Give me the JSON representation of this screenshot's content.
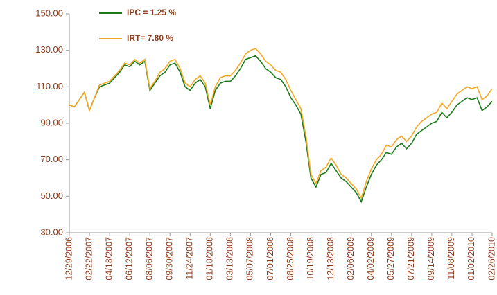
{
  "chart_data": {
    "type": "line",
    "categories": [
      "12/29/2006",
      null,
      null,
      null,
      "02/22/2007",
      null,
      null,
      null,
      "04/18/2007",
      null,
      null,
      null,
      "06/12/2007",
      null,
      null,
      null,
      "08/06/2007",
      null,
      null,
      null,
      "09/30/2007",
      null,
      null,
      null,
      "11/24/2007",
      null,
      null,
      null,
      "01/18/2008",
      null,
      null,
      null,
      "03/13/2008",
      null,
      null,
      null,
      "05/07/2008",
      null,
      null,
      null,
      "07/01/2008",
      null,
      null,
      null,
      "08/25/2008",
      null,
      null,
      null,
      "10/19/2008",
      null,
      null,
      null,
      "12/13/2008",
      null,
      null,
      null,
      "02/06/2009",
      null,
      null,
      null,
      "04/02/2009",
      null,
      null,
      null,
      "05/27/2009",
      null,
      null,
      null,
      "07/21/2009",
      null,
      null,
      null,
      "09/14/2009",
      null,
      null,
      null,
      "11/08/2009",
      null,
      null,
      null,
      "01/02/2010",
      null,
      null,
      null,
      "02/26/2010"
    ],
    "series": [
      {
        "name": "IPC = 1.25 %",
        "color": "#1a7a1a",
        "values": [
          100,
          99,
          103,
          107,
          97,
          104,
          110,
          111,
          112,
          115,
          118,
          122,
          121,
          124,
          122,
          124,
          108,
          112,
          116,
          118,
          122,
          123,
          118,
          110,
          108,
          112,
          114,
          110,
          98,
          108,
          112,
          113,
          113,
          116,
          120,
          125,
          126,
          127,
          124,
          120,
          118,
          115,
          114,
          110,
          104,
          100,
          95,
          80,
          60,
          55,
          62,
          63,
          68,
          64,
          60,
          58,
          55,
          52,
          47,
          55,
          62,
          67,
          70,
          74,
          73,
          77,
          79,
          76,
          79,
          84,
          86,
          88,
          90,
          91,
          96,
          93,
          96,
          100,
          102,
          104,
          103,
          104,
          97,
          99,
          102
        ]
      },
      {
        "name": "IRT= 7.80 %",
        "color": "#f5a623",
        "values": [
          100,
          99,
          103,
          107,
          97,
          104,
          111,
          112,
          113,
          116,
          119,
          123,
          122,
          125,
          123,
          125,
          109,
          113,
          118,
          120,
          124,
          125,
          120,
          112,
          110,
          114,
          116,
          112,
          100,
          110,
          115,
          116,
          116,
          119,
          123,
          128,
          130,
          131,
          128,
          124,
          122,
          119,
          118,
          114,
          108,
          103,
          98,
          83,
          62,
          57,
          64,
          66,
          71,
          67,
          62,
          60,
          57,
          54,
          49,
          58,
          65,
          70,
          73,
          78,
          77,
          81,
          83,
          80,
          83,
          88,
          91,
          93,
          95,
          96,
          101,
          98,
          102,
          106,
          108,
          110,
          109,
          110,
          103,
          105,
          109
        ]
      }
    ],
    "ylim": [
      30,
      150
    ],
    "yticks": [
      {
        "value": 30,
        "label": "30.00"
      },
      {
        "value": 50,
        "label": "50.00"
      },
      {
        "value": 70,
        "label": "70.00"
      },
      {
        "value": 90,
        "label": "90.00"
      },
      {
        "value": 110,
        "label": "110.00"
      },
      {
        "value": 130,
        "label": "130.00"
      },
      {
        "value": 150,
        "label": "150.00"
      }
    ],
    "grid": false
  }
}
